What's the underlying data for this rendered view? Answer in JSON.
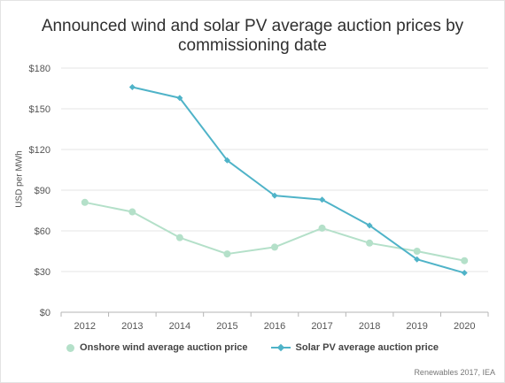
{
  "chart_data": {
    "type": "line",
    "title_line1": "Announced wind and solar PV average auction prices by",
    "title_line2": "commissioning date",
    "ylabel": "USD per MWh",
    "categories": [
      "2012",
      "2013",
      "2014",
      "2015",
      "2016",
      "2017",
      "2018",
      "2019",
      "2020"
    ],
    "yticks": [
      "$0",
      "$30",
      "$60",
      "$90",
      "$120",
      "$150",
      "$180"
    ],
    "ylim": [
      0,
      180
    ],
    "grid": true,
    "legend_position": "bottom",
    "series": [
      {
        "name": "Onshore wind average auction price",
        "color": "#b4e0c9",
        "marker": "circle",
        "values": [
          81,
          74,
          55,
          43,
          48,
          62,
          51,
          45,
          38
        ]
      },
      {
        "name": "Solar PV average auction price",
        "color": "#4fb3c8",
        "marker": "diamond",
        "values": [
          null,
          166,
          158,
          112,
          86,
          83,
          64,
          39,
          29
        ]
      }
    ],
    "source": "Renewables 2017, IEA"
  }
}
